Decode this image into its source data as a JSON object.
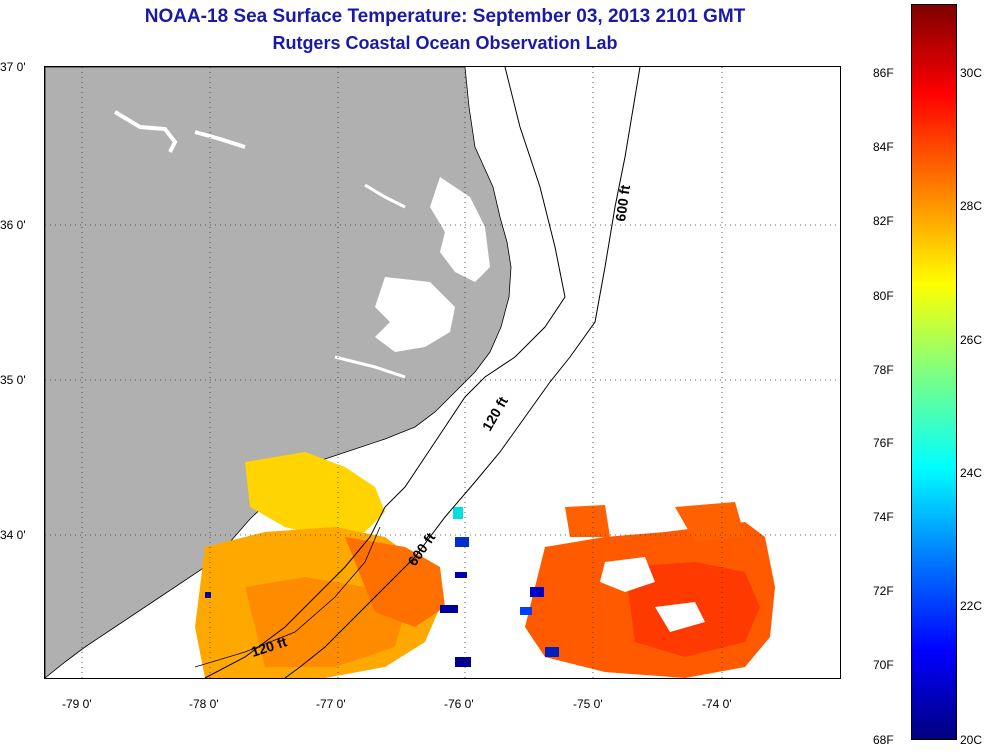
{
  "title": "NOAA-18 Sea Surface Temperature:  September 03, 2013 2101 GMT",
  "subtitle": "Rutgers Coastal Ocean Observation Lab",
  "lat_labels": [
    "37 0'",
    "36 0'",
    "35 0'",
    "34 0'"
  ],
  "lon_labels": [
    "-79 0'",
    "-78 0'",
    "-77 0'",
    "-76 0'",
    "-75 0'",
    "-74 0'"
  ],
  "contour_labels": {
    "c600_north": "600 ft",
    "c120_mid": "120 ft",
    "c600_south": "600 ft",
    "c120_south": "120 ft"
  },
  "colorbar": {
    "fahrenheit": [
      "86F",
      "84F",
      "82F",
      "80F",
      "78F",
      "76F",
      "74F",
      "72F",
      "70F",
      "68F"
    ],
    "celsius": [
      "30C",
      "28C",
      "26C",
      "24C",
      "22C",
      "20C"
    ],
    "colors": [
      "#00007f",
      "#0000ff",
      "#007fff",
      "#00ffff",
      "#7fff7f",
      "#ffff00",
      "#ff7f00",
      "#ff0000",
      "#7f0000"
    ]
  },
  "colors": {
    "land": "#b0b0b0",
    "title": "#1a1aa6"
  }
}
